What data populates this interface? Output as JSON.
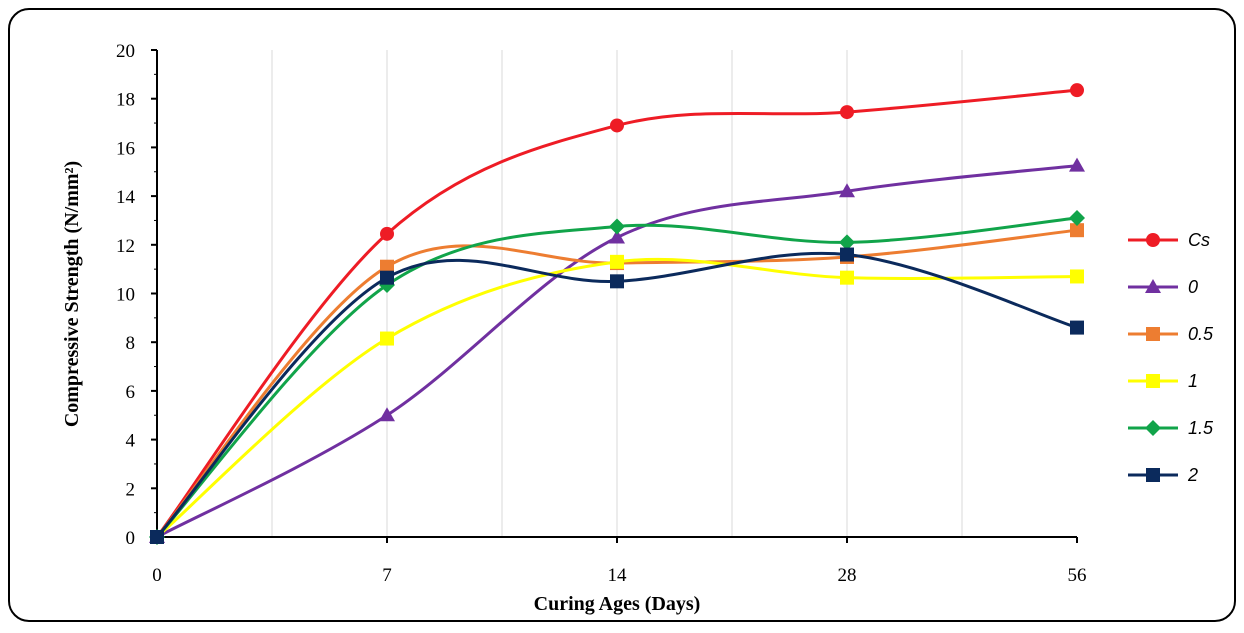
{
  "chart_data": {
    "type": "line",
    "xlabel": "Curing Ages (Days)",
    "ylabel": "Compressive Strength (N/mm²)",
    "categories": [
      "0",
      "7",
      "14",
      "28",
      "56"
    ],
    "ylim": [
      0,
      20
    ],
    "yticks": [
      "0",
      "2",
      "4",
      "6",
      "8",
      "10",
      "12",
      "14",
      "16",
      "18",
      "20"
    ],
    "grid": "vertical",
    "legend_position": "right",
    "smooth": true,
    "series": [
      {
        "name": "Cs",
        "color": "#ee1c25",
        "marker": "circle",
        "values": [
          0,
          12.45,
          16.9,
          17.45,
          18.35
        ]
      },
      {
        "name": "0",
        "color": "#7030a0",
        "marker": "triangle",
        "values": [
          0,
          5.0,
          12.3,
          14.2,
          15.25
        ]
      },
      {
        "name": "0.5",
        "color": "#ed7d31",
        "marker": "square",
        "values": [
          0,
          11.1,
          11.25,
          11.5,
          12.6
        ]
      },
      {
        "name": "1",
        "color": "#ffff00",
        "marker": "square",
        "values": [
          0,
          8.15,
          11.3,
          10.65,
          10.7
        ]
      },
      {
        "name": "1.5",
        "color": "#11a44a",
        "marker": "diamond",
        "values": [
          0,
          10.35,
          12.75,
          12.1,
          13.1
        ]
      },
      {
        "name": "2",
        "color": "#0b2a5c",
        "marker": "square",
        "values": [
          0,
          10.65,
          10.5,
          11.6,
          8.6
        ]
      }
    ]
  }
}
